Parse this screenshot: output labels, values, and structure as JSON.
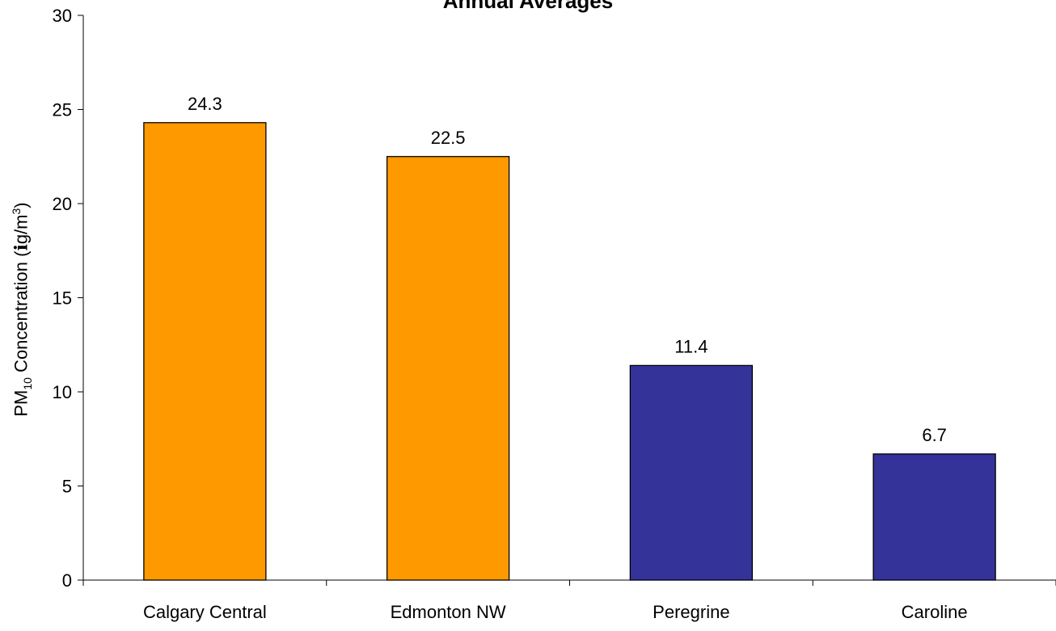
{
  "chart_data": {
    "type": "bar",
    "title": "Annual Averages",
    "ylabel": {
      "prefix": "PM",
      "subscript": "10",
      "main": " Concentration (ℹg/m",
      "superscript": "3",
      "suffix": ")"
    },
    "xlabel": "",
    "categories": [
      "Calgary Central",
      "Edmonton NW",
      "Peregrine",
      "Caroline"
    ],
    "values": [
      24.3,
      22.5,
      11.4,
      6.7
    ],
    "value_labels": [
      "24.3",
      "22.5",
      "11.4",
      "6.7"
    ],
    "bar_colors": [
      "#ff9900",
      "#ff9900",
      "#333399",
      "#333399"
    ],
    "ylim": [
      0,
      30
    ],
    "yticks": [
      0,
      5,
      10,
      15,
      20,
      25,
      30
    ],
    "grid": false,
    "legend": false
  }
}
